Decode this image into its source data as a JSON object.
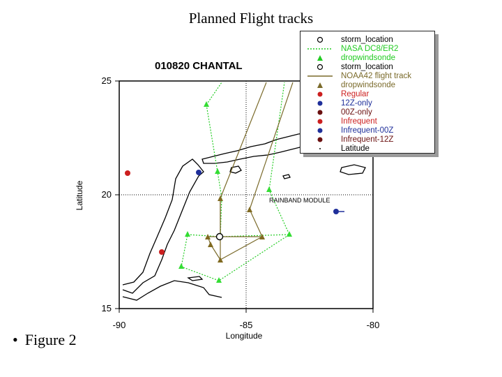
{
  "slide": {
    "title": "Planned Flight tracks",
    "bullet": "•",
    "figure_label": "Figure 2"
  },
  "map": {
    "title": "010820 CHANTAL",
    "annotation": "RAINBAND MODULE",
    "xlabel": "Longitude",
    "ylabel": "Latitude",
    "x_ticks": [
      "-90",
      "-85",
      "-80"
    ],
    "y_ticks": [
      "25",
      "20",
      "15"
    ],
    "xlim": [
      -90,
      -80
    ],
    "ylim": [
      15,
      25
    ],
    "colors": {
      "nasa_track": "#22cc22",
      "nasa_drop": "#33dd33",
      "noaa_track": "#7a6a2a",
      "noaa_drop": "#806a20",
      "regular": "#cc1f1f",
      "12z_only": "#1f2f9a",
      "frame": "#000000"
    }
  },
  "legend": {
    "items": [
      {
        "label": "storm_location",
        "symbol": "open-circle-icon",
        "color": "#000000"
      },
      {
        "label": "NASA DC8/ER2",
        "symbol": "dotted-line-icon",
        "color": "#22cc22"
      },
      {
        "label": "dropwindsonde",
        "symbol": "triangle-icon",
        "color": "#22cc22"
      },
      {
        "label": "storm_location",
        "symbol": "open-circle-icon",
        "color": "#000000"
      },
      {
        "label": "NOAA42 flight track",
        "symbol": "solid-line-icon",
        "color": "#7a6a2a"
      },
      {
        "label": "dropwindsonde",
        "symbol": "triangle-icon",
        "color": "#7a6a2a"
      },
      {
        "label": "Regular",
        "symbol": "filled-circle-icon",
        "color": "#cc1f1f"
      },
      {
        "label": "12Z-only",
        "symbol": "filled-circle-icon",
        "color": "#1f2f9a"
      },
      {
        "label": "00Z-only",
        "symbol": "filled-circle-icon",
        "color": "#6a1010"
      },
      {
        "label": "Infrequent",
        "symbol": "filled-circle-icon",
        "color": "#cc1f1f"
      },
      {
        "label": "Infrequent-00Z",
        "symbol": "filled-circle-icon",
        "color": "#1f2f9a"
      },
      {
        "label": "Infrequent-12Z",
        "symbol": "filled-circle-icon",
        "color": "#6a1010"
      },
      {
        "label": "Latitude",
        "symbol": "dot-icon",
        "color": "#000000"
      }
    ]
  }
}
